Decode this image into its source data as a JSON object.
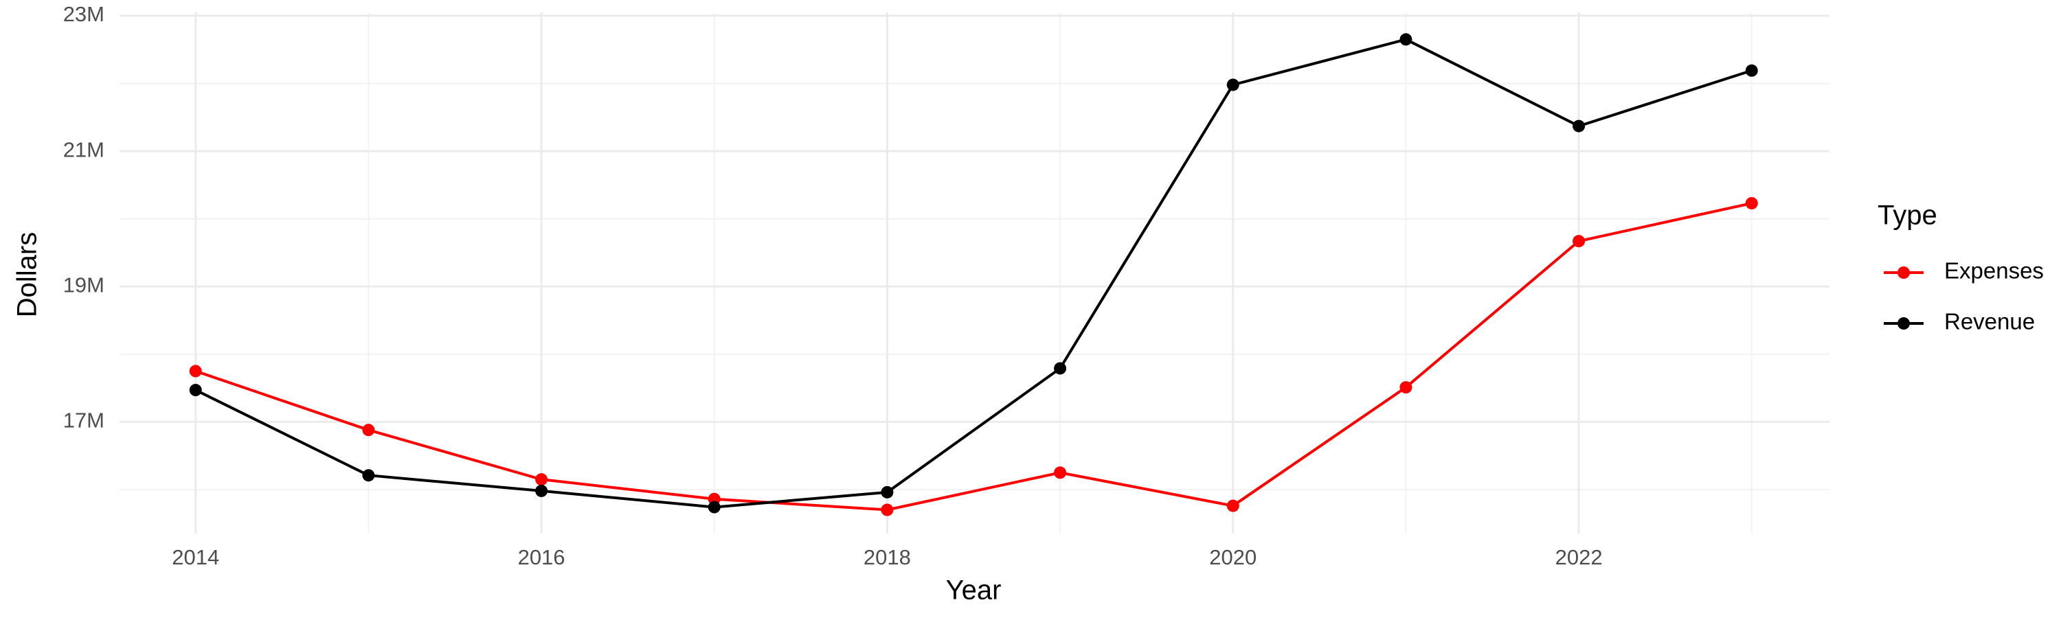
{
  "chart_data": {
    "type": "line",
    "x_label": "Year",
    "y_label": "Dollars",
    "legend_title": "Type",
    "x": [
      2014,
      2015,
      2016,
      2017,
      2018,
      2019,
      2020,
      2021,
      2022,
      2023
    ],
    "series": [
      {
        "name": "Expenses",
        "color": "#ff0000",
        "values": [
          17750000,
          16880000,
          16150000,
          15860000,
          15700000,
          16250000,
          15760000,
          17510000,
          19670000,
          20230000
        ]
      },
      {
        "name": "Revenue",
        "color": "#000000",
        "values": [
          17470000,
          16210000,
          15980000,
          15740000,
          15960000,
          17790000,
          21980000,
          22650000,
          21370000,
          22190000
        ]
      }
    ],
    "xlim": [
      2013.56,
      2023.45
    ],
    "xticks": [
      2014,
      2016,
      2018,
      2020,
      2022
    ],
    "ylim": [
      15350000,
      23050000
    ],
    "yticks": [
      {
        "value": 17000000,
        "label": "17M"
      },
      {
        "value": 19000000,
        "label": "19M"
      },
      {
        "value": 21000000,
        "label": "21M"
      },
      {
        "value": 23000000,
        "label": "23M"
      }
    ],
    "grid": true,
    "legend_position": "right"
  }
}
